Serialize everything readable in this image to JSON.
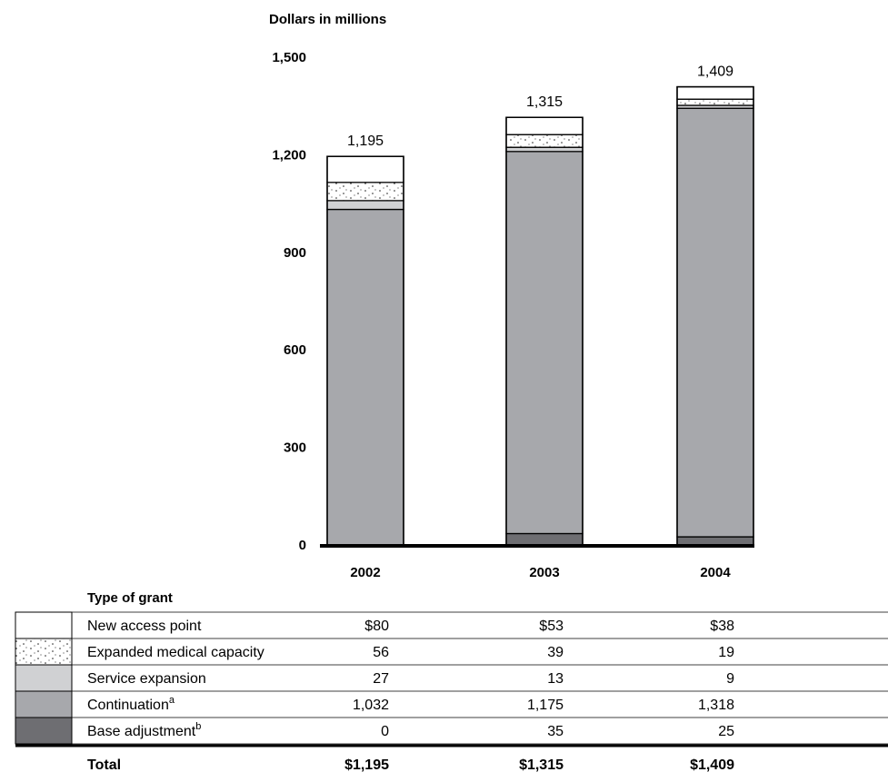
{
  "chart_data": {
    "type": "bar",
    "stacked": true,
    "unit_label": "Dollars in millions",
    "categories": [
      "2002",
      "2003",
      "2004"
    ],
    "ylim": [
      0,
      1500
    ],
    "yticks": [
      "0",
      "300",
      "600",
      "900",
      "1,200",
      "1,500"
    ],
    "ytick_values": [
      0,
      300,
      600,
      900,
      1200,
      1500
    ],
    "totals": [
      1195,
      1315,
      1409
    ],
    "total_labels": [
      "1,195",
      "1,315",
      "1,409"
    ],
    "series": [
      {
        "name": "Base adjustment",
        "superscript": "b",
        "values": [
          0,
          35,
          25
        ],
        "labels": [
          "0",
          "35",
          "25"
        ],
        "color": "#6e6e72",
        "pattern": "none"
      },
      {
        "name": "Continuation",
        "superscript": "a",
        "values": [
          1032,
          1175,
          1318
        ],
        "labels": [
          "1,032",
          "1,175",
          "1,318"
        ],
        "color": "#a7a8ac",
        "pattern": "none"
      },
      {
        "name": "Service expansion",
        "superscript": "",
        "values": [
          27,
          13,
          9
        ],
        "labels": [
          "27",
          "13",
          "9"
        ],
        "color": "#d0d1d3",
        "pattern": "none"
      },
      {
        "name": "Expanded medical capacity",
        "superscript": "",
        "values": [
          56,
          39,
          19
        ],
        "labels": [
          "56",
          "39",
          "19"
        ],
        "color": "#ffffff",
        "pattern": "dots"
      },
      {
        "name": "New access point",
        "superscript": "",
        "values": [
          80,
          53,
          38
        ],
        "labels": [
          "$80",
          "$53",
          "$38"
        ],
        "color": "#ffffff",
        "pattern": "none"
      }
    ],
    "table": {
      "header": "Type of grant",
      "total_row_label": "Total",
      "total_row_values": [
        "$1,195",
        "$1,315",
        "$1,409"
      ]
    }
  }
}
